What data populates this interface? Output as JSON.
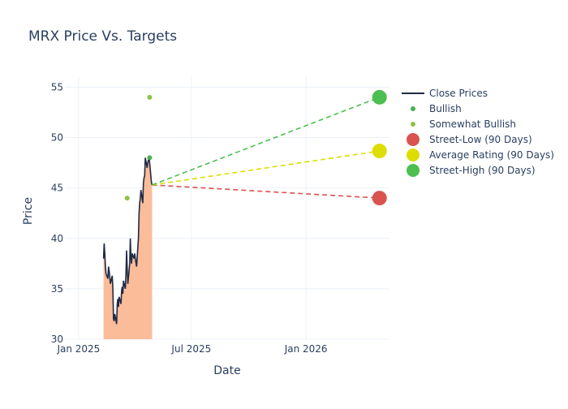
{
  "chart_data": {
    "type": "line",
    "title": "MRX Price Vs. Targets",
    "xlabel": "Date",
    "ylabel": "Price",
    "xlim": [
      "2024-12-10",
      "2026-05-15"
    ],
    "ylim": [
      30,
      56
    ],
    "x_ticks": [
      {
        "date": "2025-01-01",
        "label": "Jan 2025"
      },
      {
        "date": "2025-07-01",
        "label": "Jul 2025"
      },
      {
        "date": "2026-01-01",
        "label": "Jan 2026"
      }
    ],
    "y_ticks": [
      30,
      35,
      40,
      45,
      50,
      55
    ],
    "grid": true,
    "legend_position": "right",
    "series": [
      {
        "name": "Close Prices",
        "kind": "line-area",
        "color": "#1f2a44",
        "fill_color": "#fbbc9a",
        "points": [
          [
            "2025-02-10",
            38.0
          ],
          [
            "2025-02-11",
            39.5
          ],
          [
            "2025-02-12",
            38.5
          ],
          [
            "2025-02-13",
            37.2
          ],
          [
            "2025-02-14",
            36.5
          ],
          [
            "2025-02-17",
            36.0
          ],
          [
            "2025-02-18",
            37.2
          ],
          [
            "2025-02-19",
            36.8
          ],
          [
            "2025-02-20",
            36.2
          ],
          [
            "2025-02-21",
            35.5
          ],
          [
            "2025-02-24",
            36.3
          ],
          [
            "2025-02-25",
            35.0
          ],
          [
            "2025-02-26",
            32.0
          ],
          [
            "2025-02-27",
            31.8
          ],
          [
            "2025-02-28",
            32.5
          ],
          [
            "2025-03-03",
            31.5
          ],
          [
            "2025-03-04",
            33.5
          ],
          [
            "2025-03-05",
            34.0
          ],
          [
            "2025-03-06",
            33.2
          ],
          [
            "2025-03-07",
            34.2
          ],
          [
            "2025-03-10",
            33.5
          ],
          [
            "2025-03-11",
            34.8
          ],
          [
            "2025-03-12",
            35.2
          ],
          [
            "2025-03-13",
            34.5
          ],
          [
            "2025-03-14",
            35.8
          ],
          [
            "2025-03-17",
            35.0
          ],
          [
            "2025-03-18",
            36.5
          ],
          [
            "2025-03-19",
            38.8
          ],
          [
            "2025-03-20",
            37.0
          ],
          [
            "2025-03-21",
            35.5
          ],
          [
            "2025-03-24",
            37.5
          ],
          [
            "2025-03-25",
            40.0
          ],
          [
            "2025-03-26",
            38.2
          ],
          [
            "2025-03-27",
            37.5
          ],
          [
            "2025-03-28",
            38.5
          ],
          [
            "2025-03-31",
            38.0
          ],
          [
            "2025-04-01",
            38.5
          ],
          [
            "2025-04-02",
            38.0
          ],
          [
            "2025-04-03",
            37.6
          ],
          [
            "2025-04-04",
            37.2
          ],
          [
            "2025-04-07",
            40.0
          ],
          [
            "2025-04-08",
            42.5
          ],
          [
            "2025-04-09",
            43.5
          ],
          [
            "2025-04-10",
            44.0
          ],
          [
            "2025-04-11",
            44.8
          ],
          [
            "2025-04-14",
            43.5
          ],
          [
            "2025-04-15",
            45.5
          ],
          [
            "2025-04-16",
            46.0
          ],
          [
            "2025-04-17",
            46.2
          ],
          [
            "2025-04-18",
            48.0
          ],
          [
            "2025-04-21",
            47.0
          ],
          [
            "2025-04-22",
            47.5
          ],
          [
            "2025-04-23",
            47.8
          ],
          [
            "2025-04-24",
            48.2
          ],
          [
            "2025-04-25",
            47.5
          ],
          [
            "2025-04-28",
            45.5
          ],
          [
            "2025-04-29",
            45.3
          ]
        ]
      },
      {
        "name": "Bullish",
        "kind": "markers",
        "color": "#4caf50",
        "points": [
          [
            "2025-04-25",
            48.0
          ]
        ]
      },
      {
        "name": "Somewhat Bullish",
        "kind": "markers",
        "color": "#8bc34a",
        "points": [
          [
            "2025-03-20",
            44.0
          ],
          [
            "2025-04-25",
            54.0
          ]
        ]
      },
      {
        "name": "Street-Low (90 Days)",
        "kind": "target",
        "color": "#d9534f",
        "from": [
          "2025-04-29",
          45.3
        ],
        "to": [
          "2026-04-29",
          44.0
        ]
      },
      {
        "name": "Average Rating (90 Days)",
        "kind": "target",
        "color": "#dddd00",
        "from": [
          "2025-04-29",
          45.3
        ],
        "to": [
          "2026-04-29",
          48.67
        ]
      },
      {
        "name": "Street-High (90 Days)",
        "kind": "target",
        "color": "#4cbf50",
        "from": [
          "2025-04-29",
          45.3
        ],
        "to": [
          "2026-04-29",
          54.0
        ]
      }
    ]
  }
}
